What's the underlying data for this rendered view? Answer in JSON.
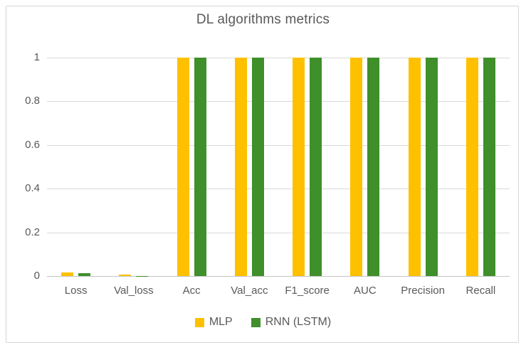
{
  "chart_data": {
    "type": "bar",
    "title": "DL algorithms metrics",
    "categories": [
      "Loss",
      "Val_loss",
      "Acc",
      "Val_acc",
      "F1_score",
      "AUC",
      "Precision",
      "Recall"
    ],
    "series": [
      {
        "name": "MLP",
        "color": "#FFC000",
        "values": [
          0.015,
          0.008,
          1,
          1,
          1,
          1,
          1,
          1
        ]
      },
      {
        "name": "RNN (LSTM)",
        "color": "#3F8F2B",
        "values": [
          0.012,
          0.001,
          1,
          1,
          1,
          1,
          1,
          1
        ]
      }
    ],
    "xlabel": "",
    "ylabel": "",
    "ylim": [
      0,
      1
    ],
    "yticks": [
      0,
      0.2,
      0.4,
      0.6,
      0.8,
      1
    ],
    "ytick_labels": [
      "0",
      "0.2",
      "0.4",
      "0.6",
      "0.8",
      "1"
    ],
    "grid": true,
    "legend_position": "bottom"
  },
  "styles": {
    "text_color": "#595959",
    "gridline_color": "#D9D9D9",
    "axis_line_color": "#C6C4C4",
    "frame_border_color": "#D7D5D5",
    "background_color": "#FFFFFF"
  }
}
